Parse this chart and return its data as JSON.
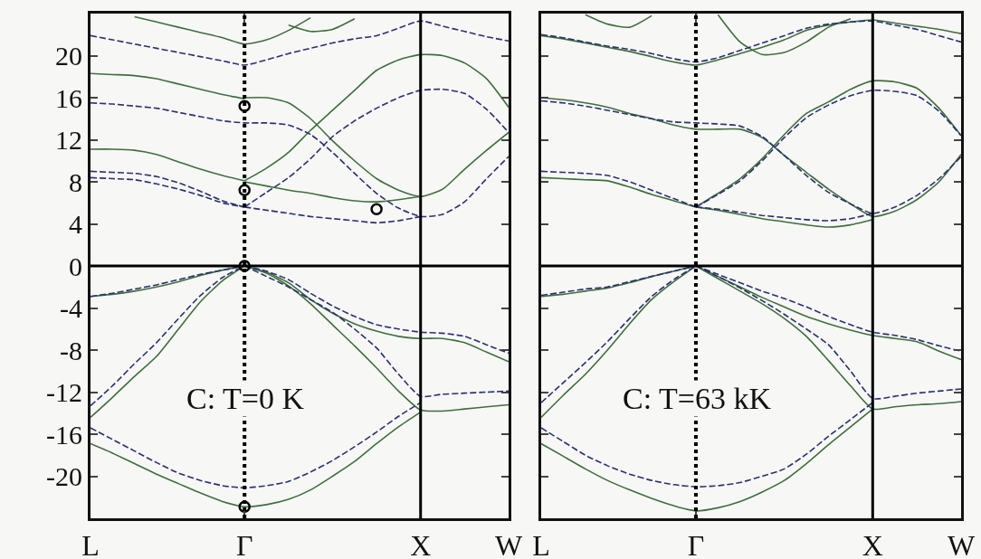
{
  "chart_data": [
    {
      "type": "line",
      "categories": [
        "L",
        null,
        null,
        null,
        null,
        null,
        null,
        "Γ",
        null,
        null,
        null,
        null,
        null,
        null,
        null,
        "X",
        null,
        null,
        null,
        "W"
      ],
      "ylim": [
        -24,
        24
      ],
      "yticks": [
        -20,
        -16,
        -12,
        -8,
        -4,
        0,
        4,
        8,
        12,
        16,
        20
      ],
      "annotations": [
        "C: T=0 K"
      ],
      "ref_lines": [
        {
          "axis": "y",
          "value": 0,
          "color": "#000000",
          "line_style": "solid"
        },
        {
          "axis": "x",
          "value": "Γ",
          "color": "#000000",
          "line_style": "dotted"
        },
        {
          "axis": "x",
          "value": "X",
          "color": "#000000",
          "line_style": "solid"
        }
      ],
      "series": [
        {
          "color": "#3f6e3f",
          "line_style": "solid",
          "values": [
            null,
            null,
            23.7,
            23.2,
            22.7,
            22.2,
            21.7,
            21.1,
            21.5,
            22.4,
            23.6,
            null,
            null,
            null,
            null,
            null,
            null,
            null,
            null,
            null
          ]
        },
        {
          "color": "#3f6e3f",
          "line_style": "solid",
          "values": [
            null,
            null,
            null,
            null,
            null,
            null,
            null,
            null,
            null,
            22.9,
            22.3,
            22.5,
            23.5,
            null,
            null,
            null,
            null,
            null,
            null,
            null
          ]
        },
        {
          "color": "#3f6e3f",
          "line_style": "solid",
          "values": [
            18.3,
            18.2,
            18.1,
            17.8,
            17.3,
            16.8,
            16.3,
            15.9,
            null,
            null,
            null,
            null,
            null,
            null,
            null,
            null,
            null,
            null,
            null,
            null
          ]
        },
        {
          "color": "#3f6e3f",
          "line_style": "solid",
          "values": [
            null,
            null,
            null,
            null,
            null,
            null,
            null,
            16.0,
            16.0,
            15.5,
            14.0,
            11.9,
            10.0,
            8.3,
            7.2,
            6.6,
            7.3,
            9.2,
            11.0,
            12.7
          ]
        },
        {
          "color": "#3f6e3f",
          "line_style": "solid",
          "values": [
            null,
            null,
            null,
            null,
            null,
            null,
            null,
            8.1,
            9.3,
            10.8,
            12.9,
            14.8,
            16.7,
            18.6,
            19.6,
            20.1,
            20.0,
            19.3,
            17.8,
            15.1
          ]
        },
        {
          "color": "#3f6e3f",
          "line_style": "solid",
          "values": [
            null,
            null,
            null,
            null,
            null,
            null,
            null,
            8.0,
            7.6,
            7.2,
            6.9,
            6.5,
            6.2,
            6.1,
            6.3,
            6.6,
            null,
            null,
            null,
            null
          ]
        },
        {
          "color": "#3f6e3f",
          "line_style": "solid",
          "values": [
            11.1,
            11.1,
            11.0,
            10.6,
            9.9,
            9.2,
            8.6,
            8.1,
            null,
            null,
            null,
            null,
            null,
            null,
            null,
            null,
            null,
            null,
            null,
            null
          ]
        },
        {
          "color": "#3f6e3f",
          "line_style": "solid",
          "values": [
            -2.9,
            -2.7,
            -2.4,
            -2.0,
            -1.5,
            -0.9,
            -0.4,
            0,
            null,
            null,
            null,
            null,
            null,
            null,
            null,
            null,
            null,
            null,
            null,
            null
          ]
        },
        {
          "color": "#3f6e3f",
          "line_style": "solid",
          "values": [
            -14.4,
            -12.5,
            -10.5,
            -8.6,
            -6.0,
            -3.4,
            -1.4,
            0,
            null,
            null,
            null,
            null,
            null,
            null,
            null,
            null,
            null,
            null,
            null,
            null
          ]
        },
        {
          "color": "#3f6e3f",
          "line_style": "solid",
          "values": [
            null,
            null,
            null,
            null,
            null,
            null,
            null,
            0,
            -0.6,
            -1.6,
            -3.2,
            -4.5,
            -5.5,
            -6.2,
            -6.7,
            -6.9,
            -6.9,
            -7.3,
            -8.2,
            -9.1
          ]
        },
        {
          "color": "#3f6e3f",
          "line_style": "solid",
          "values": [
            null,
            null,
            null,
            null,
            null,
            null,
            null,
            0,
            -0.7,
            -1.9,
            -3.6,
            -5.6,
            -7.6,
            -9.7,
            -11.9,
            -13.7,
            -13.8,
            -13.6,
            -13.4,
            -13.2
          ]
        },
        {
          "color": "#3f6e3f",
          "line_style": "solid",
          "values": [
            -16.9,
            -17.8,
            -18.8,
            -19.8,
            -20.7,
            -21.6,
            -22.4,
            -22.9,
            -22.7,
            -22.2,
            -21.3,
            -20.0,
            -18.6,
            -16.9,
            -15.3,
            -13.9,
            null,
            null,
            null,
            null
          ]
        },
        {
          "color": "#2a3070",
          "line_style": "dashed",
          "values": [
            21.9,
            21.5,
            21.1,
            20.7,
            20.3,
            19.9,
            19.5,
            19.1,
            19.6,
            20.2,
            20.7,
            21.2,
            21.6,
            21.9,
            22.6,
            23.3,
            22.8,
            22.3,
            21.8,
            21.4
          ]
        },
        {
          "color": "#2a3070",
          "line_style": "dashed",
          "values": [
            15.5,
            15.4,
            15.2,
            15.0,
            14.6,
            14.2,
            13.8,
            13.6,
            13.6,
            13.4,
            12.5,
            10.8,
            8.8,
            6.9,
            5.5,
            4.7,
            4.9,
            6.1,
            8.3,
            10.4
          ]
        },
        {
          "color": "#2a3070",
          "line_style": "dashed",
          "values": [
            null,
            null,
            null,
            null,
            null,
            null,
            null,
            5.6,
            7.0,
            8.4,
            10.2,
            12.3,
            13.8,
            15.0,
            16.0,
            16.7,
            16.8,
            16.4,
            14.9,
            12.7
          ]
        },
        {
          "color": "#2a3070",
          "line_style": "dashed",
          "values": [
            null,
            null,
            null,
            null,
            null,
            null,
            null,
            5.6,
            5.3,
            5.0,
            4.7,
            4.5,
            4.3,
            4.1,
            4.3,
            4.7,
            null,
            null,
            null,
            null
          ]
        },
        {
          "color": "#2a3070",
          "line_style": "dashed",
          "values": [
            9.0,
            8.9,
            8.8,
            8.5,
            7.9,
            7.1,
            6.2,
            5.6,
            null,
            null,
            null,
            null,
            null,
            null,
            null,
            null,
            null,
            null,
            null,
            null
          ]
        },
        {
          "color": "#2a3070",
          "line_style": "dashed",
          "values": [
            8.4,
            8.3,
            8.2,
            7.8,
            7.3,
            6.7,
            6.0,
            5.6,
            null,
            null,
            null,
            null,
            null,
            null,
            null,
            null,
            null,
            null,
            null,
            null
          ]
        },
        {
          "color": "#2a3070",
          "line_style": "dashed",
          "values": [
            -2.9,
            -2.6,
            -2.2,
            -1.8,
            -1.3,
            -0.8,
            -0.4,
            0,
            null,
            null,
            null,
            null,
            null,
            null,
            null,
            null,
            null,
            null,
            null,
            null
          ]
        },
        {
          "color": "#2a3070",
          "line_style": "dashed",
          "values": [
            -13.3,
            -11.4,
            -9.3,
            -7.3,
            -5.0,
            -2.8,
            -1.1,
            0,
            null,
            null,
            null,
            null,
            null,
            null,
            null,
            null,
            null,
            null,
            null,
            null
          ]
        },
        {
          "color": "#2a3070",
          "line_style": "dashed",
          "values": [
            null,
            null,
            null,
            null,
            null,
            null,
            null,
            0,
            -0.5,
            -1.3,
            -2.6,
            -3.8,
            -4.8,
            -5.6,
            -6.0,
            -6.3,
            -6.4,
            -6.7,
            -7.5,
            -8.3
          ]
        },
        {
          "color": "#2a3070",
          "line_style": "dashed",
          "values": [
            null,
            null,
            null,
            null,
            null,
            null,
            null,
            0,
            -1.0,
            -2.0,
            -3.2,
            -4.4,
            -6.0,
            -7.8,
            -10.3,
            -12.4,
            -12.2,
            -12.1,
            -12.0,
            -11.9
          ]
        },
        {
          "color": "#2a3070",
          "line_style": "dashed",
          "values": [
            -15.4,
            -16.5,
            -17.6,
            -18.7,
            -19.7,
            -20.4,
            -20.9,
            -21.1,
            -20.9,
            -20.5,
            -19.6,
            -18.5,
            -17.2,
            -15.8,
            -14.3,
            -13.0,
            null,
            null,
            null,
            null
          ]
        },
        {
          "type": "scatter",
          "marker": "circle",
          "color": "#000000",
          "x": [
            "Γ",
            "Γ",
            "Γ",
            "Γ"
          ],
          "values": [
            15.2,
            7.2,
            0,
            -22.9
          ]
        },
        {
          "type": "scatter",
          "marker": "circle",
          "color": "#000000",
          "values": [
            null,
            null,
            null,
            null,
            null,
            null,
            null,
            null,
            null,
            null,
            null,
            null,
            null,
            5.4,
            null,
            null,
            null,
            null,
            null,
            null
          ]
        }
      ]
    },
    {
      "type": "line",
      "categories": [
        "L",
        null,
        null,
        null,
        null,
        null,
        null,
        "Γ",
        null,
        null,
        null,
        null,
        null,
        null,
        null,
        "X",
        null,
        null,
        null,
        "W"
      ],
      "ylim": [
        -24,
        24
      ],
      "yticks": [
        -20,
        -16,
        -12,
        -8,
        -4,
        0,
        4,
        8,
        12,
        16,
        20
      ],
      "tick_labels": "x",
      "annotations": [
        "C: T=63 kK"
      ],
      "ref_lines": [
        {
          "axis": "y",
          "value": 0,
          "color": "#000000",
          "line_style": "solid"
        },
        {
          "axis": "x",
          "value": "Γ",
          "color": "#000000",
          "line_style": "dotted"
        },
        {
          "axis": "x",
          "value": "X",
          "color": "#000000",
          "line_style": "solid"
        }
      ],
      "series": [
        {
          "color": "#3f6e3f",
          "line_style": "solid",
          "values": [
            null,
            null,
            23.9,
            23.0,
            22.7,
            23.8,
            null,
            null,
            null,
            null,
            null,
            null,
            null,
            null,
            null,
            null,
            null,
            null,
            null,
            null
          ]
        },
        {
          "color": "#3f6e3f",
          "line_style": "solid",
          "values": [
            21.9,
            21.6,
            21.2,
            20.8,
            20.4,
            19.9,
            19.4,
            19.1,
            19.6,
            20.2,
            20.8,
            21.5,
            22.4,
            22.9,
            23.2,
            23.4,
            23.1,
            22.8,
            22.5,
            22.1
          ]
        },
        {
          "color": "#3f6e3f",
          "line_style": "solid",
          "values": [
            null,
            null,
            null,
            null,
            null,
            null,
            null,
            null,
            23.9,
            21.3,
            20.1,
            20.3,
            21.3,
            22.7,
            23.5,
            null,
            null,
            null,
            null,
            null
          ]
        },
        {
          "color": "#3f6e3f",
          "line_style": "solid",
          "values": [
            16.0,
            15.8,
            15.5,
            15.1,
            14.5,
            14.0,
            13.4,
            13.0,
            13.0,
            13.0,
            12.2,
            10.5,
            8.9,
            7.3,
            5.9,
            4.7,
            5.2,
            6.3,
            8.0,
            10.6
          ]
        },
        {
          "color": "#3f6e3f",
          "line_style": "solid",
          "values": [
            null,
            null,
            null,
            null,
            null,
            null,
            null,
            5.6,
            6.9,
            8.3,
            10.2,
            12.5,
            14.5,
            15.6,
            16.8,
            17.6,
            17.5,
            16.9,
            15.0,
            12.4
          ]
        },
        {
          "color": "#3f6e3f",
          "line_style": "solid",
          "values": [
            null,
            null,
            null,
            null,
            null,
            null,
            null,
            5.6,
            5.3,
            4.9,
            4.5,
            4.2,
            3.9,
            3.7,
            3.9,
            4.4,
            null,
            null,
            null,
            null
          ]
        },
        {
          "color": "#3f6e3f",
          "line_style": "solid",
          "values": [
            8.4,
            8.3,
            8.2,
            8.1,
            7.5,
            6.8,
            6.2,
            5.6,
            null,
            null,
            null,
            null,
            null,
            null,
            null,
            null,
            null,
            null,
            null,
            null
          ]
        },
        {
          "color": "#3f6e3f",
          "line_style": "solid",
          "values": [
            -2.9,
            -2.7,
            -2.4,
            -2.1,
            -1.6,
            -1.0,
            -0.5,
            0,
            null,
            null,
            null,
            null,
            null,
            null,
            null,
            null,
            null,
            null,
            null,
            null
          ]
        },
        {
          "color": "#3f6e3f",
          "line_style": "solid",
          "values": [
            -14.4,
            -12.3,
            -10.3,
            -8.0,
            -5.5,
            -3.2,
            -1.5,
            0,
            null,
            null,
            null,
            null,
            null,
            null,
            null,
            null,
            null,
            null,
            null,
            null
          ]
        },
        {
          "color": "#3f6e3f",
          "line_style": "solid",
          "values": [
            null,
            null,
            null,
            null,
            null,
            null,
            null,
            0,
            -1.0,
            -2.0,
            -3.0,
            -3.9,
            -4.8,
            -5.5,
            -6.1,
            -6.6,
            -6.9,
            -7.2,
            -8.1,
            -8.9
          ]
        },
        {
          "color": "#3f6e3f",
          "line_style": "solid",
          "values": [
            null,
            null,
            null,
            null,
            null,
            null,
            null,
            0,
            -1.2,
            -2.4,
            -3.6,
            -5.0,
            -6.7,
            -9.0,
            -11.4,
            -13.6,
            -13.4,
            -13.2,
            -13.1,
            -12.9
          ]
        },
        {
          "color": "#3f6e3f",
          "line_style": "solid",
          "values": [
            -16.9,
            -18.1,
            -19.3,
            -20.4,
            -21.3,
            -22.1,
            -22.8,
            -23.3,
            -23.0,
            -22.4,
            -21.5,
            -20.4,
            -18.8,
            -17.0,
            -15.3,
            -13.6,
            null,
            null,
            null,
            null
          ]
        },
        {
          "color": "#2a3070",
          "line_style": "dashed",
          "values": [
            22.0,
            21.7,
            21.3,
            20.9,
            20.6,
            20.2,
            19.7,
            19.4,
            19.8,
            20.5,
            21.2,
            21.9,
            22.6,
            23.0,
            23.2,
            23.3,
            22.9,
            22.5,
            21.9,
            21.3
          ]
        },
        {
          "color": "#2a3070",
          "line_style": "dashed",
          "values": [
            15.7,
            15.5,
            15.2,
            14.8,
            14.4,
            14.0,
            13.7,
            13.6,
            13.5,
            13.3,
            12.3,
            10.5,
            8.6,
            7.0,
            5.9,
            5.0,
            5.6,
            6.7,
            8.3,
            10.4
          ]
        },
        {
          "color": "#2a3070",
          "line_style": "dashed",
          "values": [
            null,
            null,
            null,
            null,
            null,
            null,
            null,
            5.6,
            6.8,
            8.1,
            10.0,
            12.2,
            14.1,
            15.3,
            16.2,
            16.7,
            16.6,
            16.2,
            14.7,
            12.4
          ]
        },
        {
          "color": "#2a3070",
          "line_style": "dashed",
          "values": [
            null,
            null,
            null,
            null,
            null,
            null,
            null,
            5.6,
            5.4,
            5.1,
            4.8,
            4.6,
            4.4,
            4.3,
            4.5,
            5.0,
            null,
            null,
            null,
            null
          ]
        },
        {
          "color": "#2a3070",
          "line_style": "dashed",
          "values": [
            9.0,
            8.9,
            8.8,
            8.6,
            8.0,
            7.2,
            6.4,
            5.6,
            null,
            null,
            null,
            null,
            null,
            null,
            null,
            null,
            null,
            null,
            null,
            null
          ]
        },
        {
          "color": "#2a3070",
          "line_style": "dashed",
          "values": [
            -13.0,
            -11.1,
            -9.2,
            -7.2,
            -5.0,
            -2.9,
            -1.3,
            0,
            null,
            null,
            null,
            null,
            null,
            null,
            null,
            null,
            null,
            null,
            null,
            null
          ]
        },
        {
          "color": "#2a3070",
          "line_style": "dashed",
          "values": [
            -2.8,
            -2.5,
            -2.2,
            -2.0,
            -1.5,
            -1.0,
            -0.5,
            0,
            null,
            null,
            null,
            null,
            null,
            null,
            null,
            null,
            null,
            null,
            null,
            null
          ]
        },
        {
          "color": "#2a3070",
          "line_style": "dashed",
          "values": [
            null,
            null,
            null,
            null,
            null,
            null,
            null,
            0,
            -0.8,
            -1.6,
            -2.4,
            -3.1,
            -3.9,
            -4.8,
            -5.6,
            -6.3,
            -6.6,
            -7.0,
            -7.6,
            -8.1
          ]
        },
        {
          "color": "#2a3070",
          "line_style": "dashed",
          "values": [
            null,
            null,
            null,
            null,
            null,
            null,
            null,
            0,
            -1.0,
            -2.1,
            -3.3,
            -4.6,
            -6.0,
            -7.5,
            -10.0,
            -12.6,
            -12.4,
            -12.1,
            -11.9,
            -11.7
          ]
        },
        {
          "color": "#2a3070",
          "line_style": "dashed",
          "values": [
            -15.4,
            -16.7,
            -18.0,
            -19.0,
            -19.8,
            -20.4,
            -20.8,
            -21.0,
            -20.9,
            -20.6,
            -20.0,
            -19.3,
            -17.9,
            -16.2,
            -14.6,
            -13.0,
            null,
            null,
            null,
            null
          ]
        }
      ]
    }
  ]
}
